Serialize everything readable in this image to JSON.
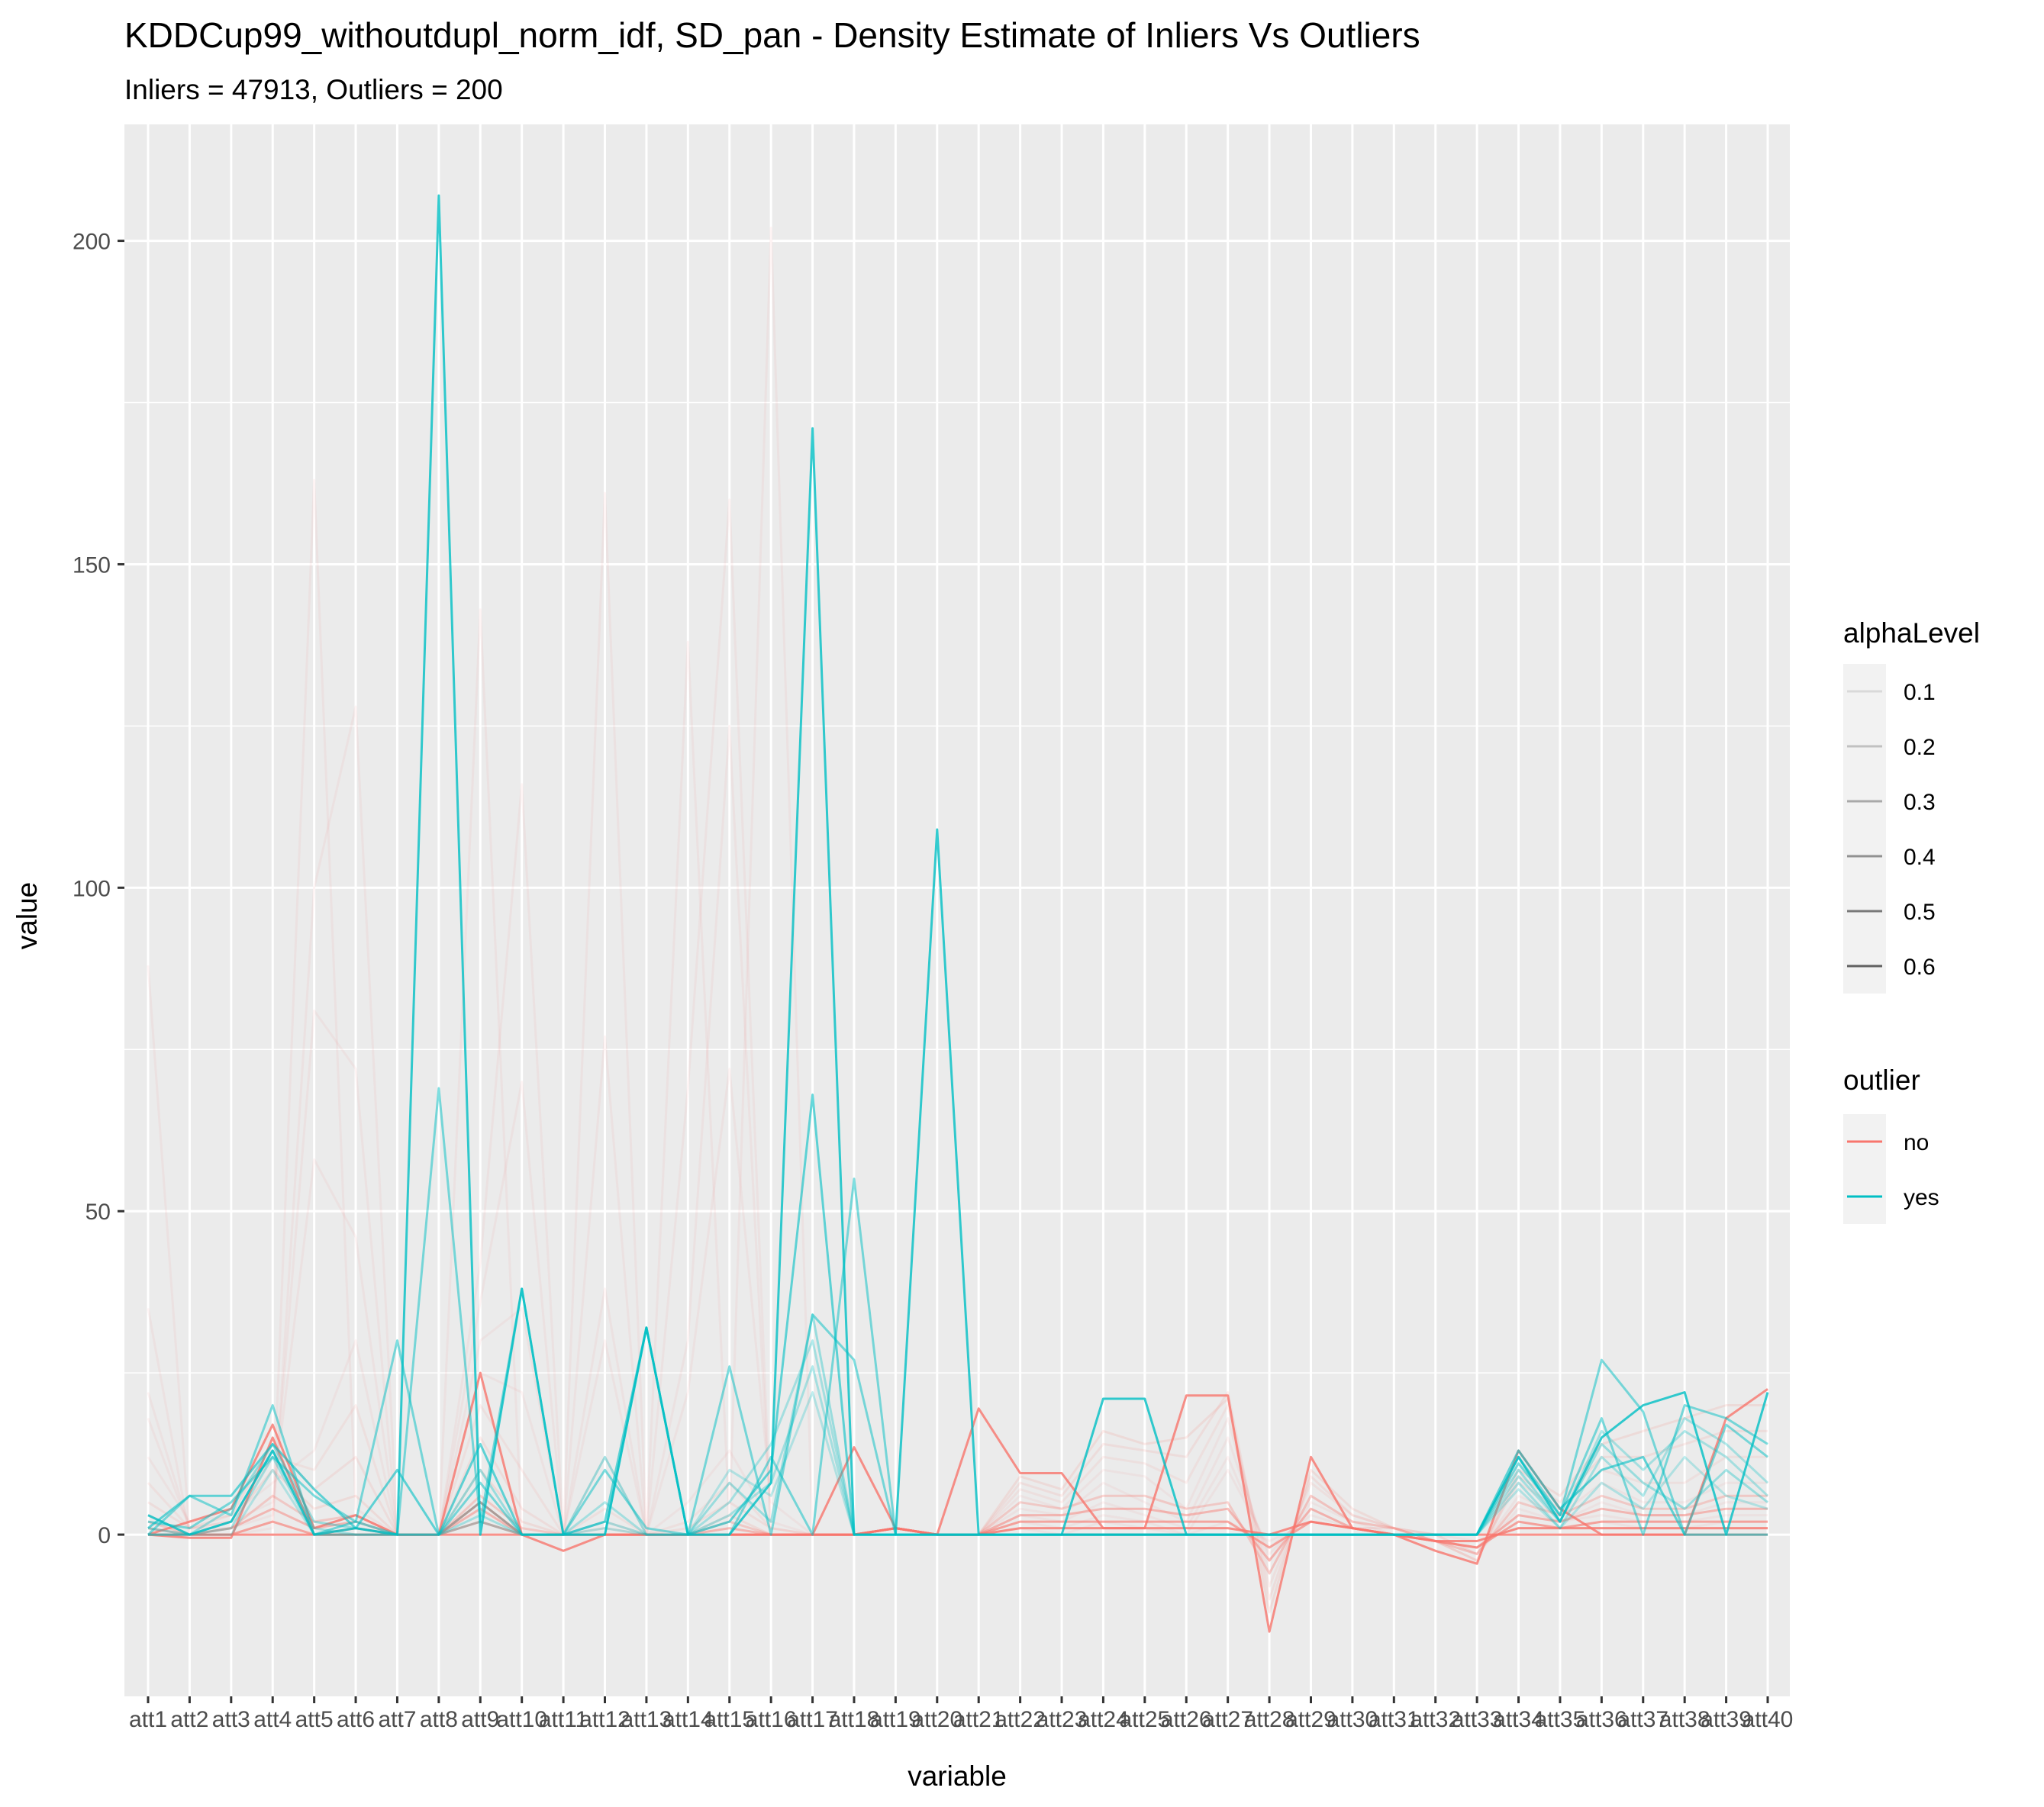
{
  "chart_data": {
    "type": "line",
    "title": "KDDCup99_withoutdupl_norm_idf, SD_pan - Density Estimate of Inliers Vs Outliers",
    "subtitle": "Inliers = 47913, Outliers = 200",
    "xlabel": "variable",
    "ylabel": "value",
    "ylim": [
      -25,
      218
    ],
    "y_ticks": [
      0,
      50,
      100,
      150,
      200
    ],
    "grid": true,
    "legend_position": "right",
    "categories": [
      "att1",
      "att2",
      "att3",
      "att4",
      "att5",
      "att6",
      "att7",
      "att8",
      "att9",
      "att10",
      "att11",
      "att12",
      "att13",
      "att14",
      "att15",
      "att16",
      "att17",
      "att18",
      "att19",
      "att20",
      "att21",
      "att22",
      "att23",
      "att24",
      "att25",
      "att26",
      "att27",
      "att28",
      "att29",
      "att30",
      "att31",
      "att32",
      "att33",
      "att34",
      "att35",
      "att36",
      "att37",
      "att38",
      "att39",
      "att40"
    ],
    "legends": [
      {
        "title": "alphaLevel",
        "entries": [
          {
            "label": "0.1",
            "opacity": 0.1
          },
          {
            "label": "0.2",
            "opacity": 0.2
          },
          {
            "label": "0.3",
            "opacity": 0.3
          },
          {
            "label": "0.4",
            "opacity": 0.4
          },
          {
            "label": "0.5",
            "opacity": 0.5
          },
          {
            "label": "0.6",
            "opacity": 0.6
          }
        ]
      },
      {
        "title": "outlier",
        "entries": [
          {
            "label": "no",
            "color": "#F8766D"
          },
          {
            "label": "yes",
            "color": "#00BFC4"
          }
        ]
      }
    ],
    "colors": {
      "no": "#F8766D",
      "yes": "#00BFC4",
      "panel": "#EBEBEB",
      "grid": "#FFFFFF"
    },
    "series": [
      {
        "outlier": "no",
        "alpha": 0.08,
        "values": [
          88,
          0,
          0,
          2,
          163,
          4,
          0,
          0,
          143,
          0,
          0,
          161,
          0,
          138,
          2,
          202,
          0,
          0,
          1,
          0,
          0,
          1,
          0,
          2,
          1,
          0,
          2,
          -1,
          2,
          1,
          1,
          0,
          -1,
          1,
          1,
          1,
          1,
          1,
          1,
          1
        ]
      },
      {
        "outlier": "no",
        "alpha": 0.08,
        "values": [
          35,
          0,
          0,
          1,
          100,
          128,
          0,
          0,
          42,
          116,
          0,
          77,
          0,
          69,
          160,
          0,
          0,
          0,
          1,
          0,
          0,
          2,
          1,
          3,
          2,
          0,
          10,
          -2,
          3,
          1,
          1,
          -1,
          -2,
          2,
          1,
          2,
          1,
          1,
          2,
          2
        ]
      },
      {
        "outlier": "no",
        "alpha": 0.08,
        "values": [
          22,
          1,
          1,
          3,
          81,
          72,
          0,
          0,
          36,
          70,
          0,
          38,
          0,
          30,
          125,
          0,
          0,
          0,
          1,
          0,
          0,
          3,
          2,
          5,
          3,
          1,
          12,
          -3,
          4,
          1,
          0,
          -1,
          -2,
          3,
          2,
          3,
          2,
          2,
          3,
          3
        ]
      },
      {
        "outlier": "no",
        "alpha": 0.08,
        "values": [
          18,
          1,
          2,
          5,
          58,
          46,
          0,
          0,
          30,
          35,
          0,
          30,
          0,
          22,
          72,
          5,
          0,
          0,
          1,
          0,
          0,
          4,
          3,
          8,
          5,
          2,
          15,
          -4,
          5,
          2,
          1,
          0,
          -3,
          4,
          2,
          5,
          3,
          3,
          5,
          5
        ]
      },
      {
        "outlier": "no",
        "alpha": 0.08,
        "values": [
          12,
          2,
          3,
          8,
          13,
          30,
          0,
          0,
          25,
          22,
          0,
          12,
          0,
          5,
          13,
          2,
          0,
          0,
          1,
          0,
          0,
          6,
          4,
          10,
          9,
          4,
          18,
          -6,
          6,
          2,
          0,
          -1,
          -3,
          6,
          3,
          8,
          5,
          5,
          8,
          8
        ]
      },
      {
        "outlier": "no",
        "alpha": 0.1,
        "values": [
          8,
          1,
          2,
          12,
          10,
          20,
          0,
          0,
          20,
          10,
          0,
          4,
          0,
          2,
          8,
          1,
          0,
          0,
          1,
          0,
          0,
          7,
          5,
          12,
          11,
          8,
          20,
          -8,
          8,
          3,
          1,
          0,
          -3,
          8,
          4,
          10,
          8,
          8,
          12,
          12
        ]
      },
      {
        "outlier": "no",
        "alpha": 0.12,
        "values": [
          5,
          1,
          3,
          14,
          7,
          12,
          0,
          0,
          15,
          4,
          0,
          2,
          0,
          1,
          5,
          1,
          0,
          0,
          1,
          0,
          0,
          8,
          6,
          14,
          13,
          12,
          22,
          -10,
          9,
          3,
          1,
          -1,
          -4,
          9,
          5,
          12,
          12,
          14,
          16,
          16
        ]
      },
      {
        "outlier": "no",
        "alpha": 0.14,
        "values": [
          3,
          0,
          2,
          10,
          4,
          6,
          0,
          0,
          10,
          2,
          0,
          1,
          0,
          0,
          3,
          0,
          0,
          0,
          1,
          0,
          0,
          9,
          7,
          16,
          14,
          15,
          21,
          -12,
          10,
          4,
          1,
          -1,
          -4,
          10,
          6,
          14,
          16,
          18,
          20,
          20
        ]
      },
      {
        "outlier": "no",
        "alpha": 0.3,
        "values": [
          2,
          0,
          1,
          6,
          2,
          3,
          0,
          0,
          6,
          1,
          0,
          0,
          0,
          0,
          2,
          0,
          0,
          0,
          1,
          0,
          0,
          5,
          4,
          6,
          6,
          4,
          5,
          -6,
          6,
          2,
          1,
          -1,
          -3,
          5,
          3,
          6,
          4,
          4,
          6,
          6
        ]
      },
      {
        "outlier": "no",
        "alpha": 0.45,
        "values": [
          1,
          0,
          1,
          4,
          1,
          2,
          0,
          0,
          4,
          0,
          0,
          0,
          0,
          0,
          1,
          0,
          0,
          0,
          1,
          0,
          0,
          3,
          3,
          4,
          4,
          3,
          4,
          -4,
          4,
          1,
          0,
          -1,
          -2,
          3,
          2,
          4,
          3,
          3,
          4,
          4
        ]
      },
      {
        "outlier": "no",
        "alpha": 0.6,
        "values": [
          0,
          0,
          0,
          2,
          0,
          1,
          0,
          0,
          2,
          0,
          0,
          0,
          0,
          0,
          0,
          0,
          0,
          0,
          1,
          0,
          0,
          2,
          2,
          2,
          2,
          2,
          2,
          -2,
          2,
          1,
          0,
          -1,
          -2,
          2,
          1,
          2,
          2,
          2,
          2,
          2
        ]
      },
      {
        "outlier": "no",
        "alpha": 0.8,
        "values": [
          0,
          -0.5,
          -0.5,
          15,
          0,
          0,
          0,
          0,
          25,
          0,
          -2.5,
          0,
          0,
          0,
          0,
          0,
          0,
          13.5,
          1,
          0,
          19.5,
          9.5,
          9.5,
          1,
          1,
          21.5,
          21.5,
          -15,
          12,
          1,
          0,
          -2.5,
          -4.5,
          13,
          4,
          0,
          0,
          0,
          18,
          22.5
        ]
      },
      {
        "outlier": "no",
        "alpha": 0.8,
        "values": [
          0,
          2,
          4,
          17,
          1,
          3,
          0,
          0,
          5,
          0,
          0,
          0,
          0,
          0,
          0,
          0,
          0,
          0,
          1,
          0,
          0,
          0,
          0,
          0,
          0,
          0,
          0,
          0,
          0,
          0,
          0,
          0,
          0,
          0,
          0,
          0,
          0,
          0,
          0,
          0
        ]
      },
      {
        "outlier": "no",
        "alpha": 0.8,
        "values": [
          0,
          0,
          0,
          0,
          0,
          0,
          0,
          0,
          0,
          0,
          0,
          0,
          0,
          0,
          0,
          0,
          0,
          0,
          1,
          0,
          0,
          1,
          1,
          1,
          1,
          1,
          1,
          0,
          2,
          1,
          0,
          -1,
          -1,
          1,
          1,
          1,
          1,
          1,
          1,
          1
        ]
      },
      {
        "outlier": "yes",
        "alpha": 0.8,
        "values": [
          3,
          0,
          2,
          13,
          0,
          1,
          0,
          207,
          0,
          38,
          0,
          0,
          32,
          0,
          0,
          8,
          171,
          0,
          0,
          109,
          0,
          0,
          0,
          21,
          21,
          0,
          0,
          0,
          0,
          0,
          0,
          0,
          0,
          12,
          2,
          15,
          20,
          22,
          0,
          22
        ]
      },
      {
        "outlier": "yes",
        "alpha": 0.6,
        "values": [
          1,
          6,
          6,
          14,
          7,
          1,
          10,
          0,
          14,
          0,
          0,
          2,
          32,
          0,
          2,
          10,
          68,
          0,
          0,
          0,
          0,
          0,
          0,
          0,
          0,
          0,
          0,
          0,
          0,
          0,
          0,
          0,
          0,
          13,
          4,
          10,
          12,
          0,
          0,
          0
        ]
      },
      {
        "outlier": "yes",
        "alpha": 0.5,
        "values": [
          2,
          1,
          5,
          12,
          6,
          2,
          0,
          69,
          2,
          38,
          0,
          10,
          1,
          0,
          26,
          0,
          34,
          27,
          0,
          0,
          0,
          0,
          0,
          0,
          0,
          0,
          0,
          0,
          0,
          0,
          0,
          0,
          0,
          12,
          3,
          18,
          0,
          20,
          18,
          14
        ]
      },
      {
        "outlier": "yes",
        "alpha": 0.5,
        "values": [
          0,
          6,
          3,
          20,
          0,
          2,
          30,
          0,
          8,
          0,
          0,
          0,
          32,
          0,
          0,
          12,
          0,
          55,
          0,
          0,
          0,
          0,
          0,
          0,
          0,
          0,
          0,
          0,
          0,
          0,
          0,
          0,
          0,
          11,
          3,
          27,
          19,
          0,
          17,
          12
        ]
      },
      {
        "outlier": "yes",
        "alpha": 0.35,
        "values": [
          1,
          0,
          4,
          14,
          2,
          1,
          0,
          0,
          10,
          0,
          0,
          12,
          0,
          0,
          8,
          2,
          34,
          0,
          0,
          0,
          0,
          0,
          0,
          0,
          0,
          0,
          0,
          0,
          0,
          0,
          0,
          0,
          0,
          10,
          2,
          14,
          8,
          4,
          10,
          5
        ]
      },
      {
        "outlier": "yes",
        "alpha": 0.3,
        "values": [
          0,
          0,
          2,
          13,
          1,
          0,
          0,
          0,
          5,
          0,
          0,
          5,
          0,
          0,
          5,
          14,
          30,
          0,
          0,
          0,
          0,
          0,
          0,
          0,
          0,
          0,
          0,
          0,
          0,
          0,
          0,
          0,
          0,
          9,
          2,
          16,
          10,
          16,
          12,
          6
        ]
      },
      {
        "outlier": "yes",
        "alpha": 0.3,
        "values": [
          0,
          0,
          1,
          12,
          0,
          0,
          0,
          0,
          3,
          0,
          0,
          2,
          0,
          0,
          3,
          8,
          26,
          0,
          0,
          0,
          0,
          0,
          0,
          0,
          0,
          0,
          0,
          0,
          0,
          0,
          0,
          0,
          0,
          8,
          1,
          12,
          6,
          18,
          14,
          8
        ]
      },
      {
        "outlier": "yes",
        "alpha": 0.25,
        "values": [
          0,
          0,
          0,
          10,
          0,
          0,
          0,
          0,
          2,
          0,
          0,
          1,
          0,
          0,
          10,
          6,
          22,
          0,
          0,
          0,
          0,
          0,
          0,
          0,
          0,
          0,
          0,
          0,
          0,
          0,
          0,
          0,
          0,
          7,
          1,
          8,
          4,
          12,
          6,
          4
        ]
      }
    ]
  }
}
